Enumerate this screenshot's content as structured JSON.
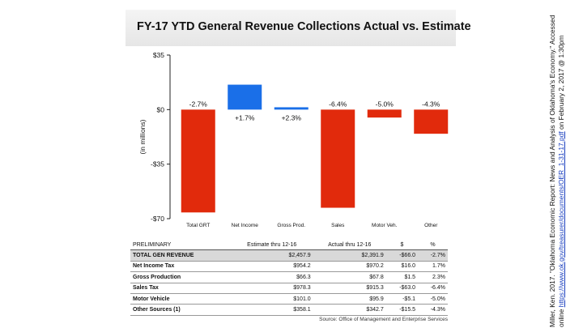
{
  "title": "FY-17 YTD General Revenue Collections Actual vs. Estimate",
  "colors": {
    "positive": "#1a6fe8",
    "negative": "#e12a0c",
    "axis": "#222222"
  },
  "chart_data": {
    "type": "bar",
    "title": "FY-17 YTD General Revenue Collections Actual vs. Estimate",
    "ylabel": "(in millions)",
    "xlabel": "",
    "ylim": [
      -70,
      35
    ],
    "y_ticks": [
      35,
      0,
      -35,
      -70
    ],
    "y_tick_labels": [
      "$35",
      "$0",
      "-$35",
      "-$70"
    ],
    "categories": [
      "Total GRT",
      "Net Income",
      "Gross Prod.",
      "Sales",
      "Motor Veh.",
      "Other"
    ],
    "values": [
      -66.0,
      16.0,
      1.5,
      -63.0,
      -5.1,
      -15.5
    ],
    "data_labels": [
      "-2.7%",
      "+1.7%",
      "+2.3%",
      "-6.4%",
      "-5.0%",
      "-4.3%"
    ]
  },
  "table": {
    "headers": [
      "PRELIMINARY",
      "Estimate thru 12-16",
      "Actual thru 12-16",
      "$",
      "%"
    ],
    "rows": [
      [
        "TOTAL GEN REVENUE",
        "$2,457.9",
        "$2,391.9",
        "-$66.0",
        "-2.7%"
      ],
      [
        "Net Income Tax",
        "$954.2",
        "$970.2",
        "$16.0",
        "1.7%"
      ],
      [
        "Gross Production",
        "$66.3",
        "$67.8",
        "$1.5",
        "2.3%"
      ],
      [
        "Sales Tax",
        "$978.3",
        "$915.3",
        "-$63.0",
        "-6.4%"
      ],
      [
        "Motor Vehicle",
        "$101.0",
        "$95.9",
        "-$5.1",
        "-5.0%"
      ],
      [
        "Other Sources (1)",
        "$358.1",
        "$342.7",
        "-$15.5",
        "-4.3%"
      ]
    ]
  },
  "source": "Source: Office of Management and Enterprise Services",
  "citation": {
    "text": "Miller, Ken. 2017. \"Oklahoma Economic Report: News and Analysis of Oklahoma's Economy.\" Accessed online",
    "link": "https://www.ok.gov/treasurer/documents/OER_1-31-17.pdf",
    "suffix": " on February 2, 2017 @ 1:30pm"
  }
}
